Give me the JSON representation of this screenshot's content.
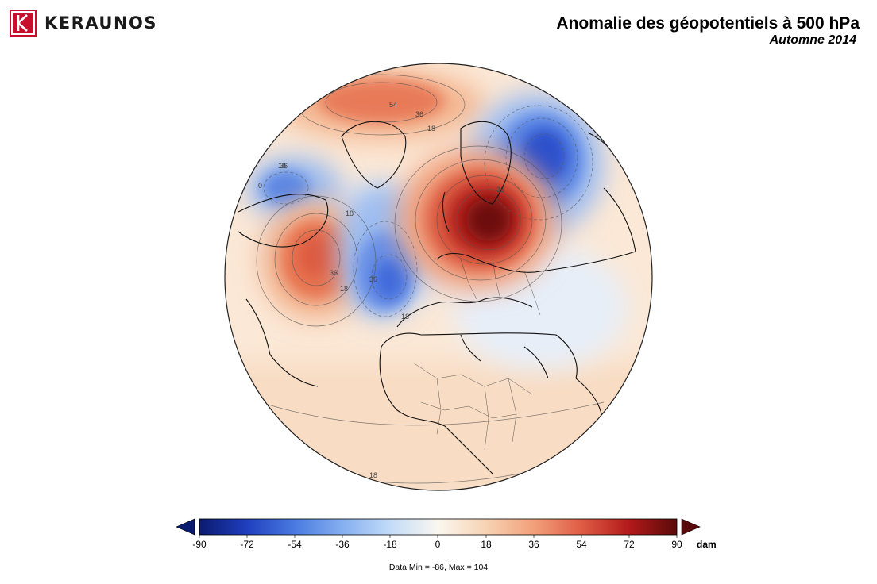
{
  "brand": {
    "name": "KERAUNOS",
    "logo_color": "#c8102e"
  },
  "header": {
    "title": "Anomalie des géopotentiels à 500 hPa",
    "subtitle": "Automne 2014"
  },
  "map": {
    "projection": "orthographic",
    "contour_labels": [
      "54",
      "36",
      "18",
      "0",
      "36",
      "18",
      "36",
      "18",
      "36",
      "18",
      "36",
      "18",
      "18"
    ],
    "anomaly_features": [
      {
        "name": "scandinavia-high",
        "sign": "positive",
        "value_approx": 90
      },
      {
        "name": "western-russia-low",
        "sign": "negative",
        "value_approx": -60
      },
      {
        "name": "greenland-high",
        "sign": "positive",
        "value_approx": 45
      },
      {
        "name": "newfoundland-high",
        "sign": "positive",
        "value_approx": 55
      },
      {
        "name": "mid-atlantic-low",
        "sign": "negative",
        "value_approx": -50
      },
      {
        "name": "canada-low",
        "sign": "negative",
        "value_approx": -35
      }
    ]
  },
  "colorbar": {
    "ticks": [
      "-90",
      "-72",
      "-54",
      "-36",
      "-18",
      "0",
      "18",
      "36",
      "54",
      "72",
      "90"
    ],
    "unit": "dam",
    "min": -90,
    "max": 90,
    "colors": {
      "-90": "#0a1a6e",
      "-72": "#1f3fbf",
      "-54": "#4a7be0",
      "-36": "#86aff0",
      "-18": "#c2dcf8",
      "0": "#fbf7ef",
      "18": "#f7d3b4",
      "36": "#f2a07a",
      "54": "#df5c45",
      "72": "#b3191a",
      "90": "#5a0a0a"
    }
  },
  "stats": {
    "text": "Data Min = -86, Max = 104"
  }
}
